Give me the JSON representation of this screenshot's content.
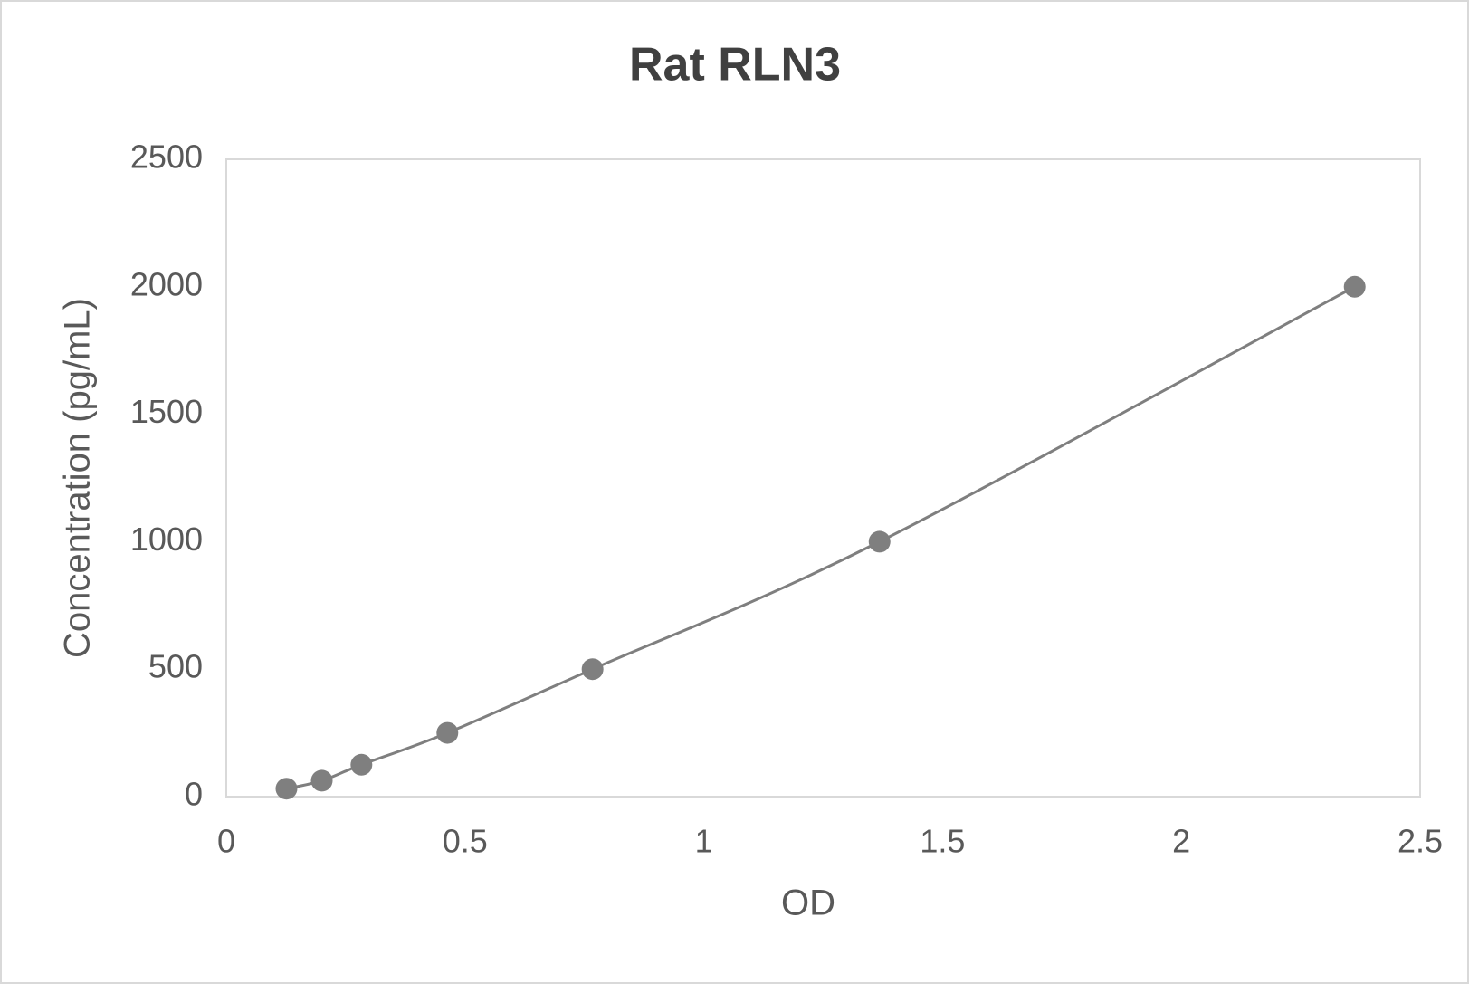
{
  "chart_data": {
    "type": "scatter",
    "title": "Rat RLN3",
    "x_label": "OD",
    "y_label": "Concentration (pg/mL)",
    "series": [
      {
        "name": "Rat RLN3",
        "color": "#7f7f7f",
        "x": [
          0.126,
          0.2,
          0.283,
          0.463,
          0.767,
          1.368,
          2.363
        ],
        "values": [
          31.25,
          62.5,
          125,
          250,
          500,
          1000,
          2000
        ]
      }
    ],
    "xlim": [
      0,
      2.5
    ],
    "xticks": [
      0,
      0.5,
      1,
      1.5,
      2,
      2.5
    ],
    "ylim": [
      0,
      2500
    ],
    "yticks": [
      0,
      500,
      1000,
      1500,
      2000,
      2500
    ],
    "grid": false,
    "smooth_line": true
  }
}
